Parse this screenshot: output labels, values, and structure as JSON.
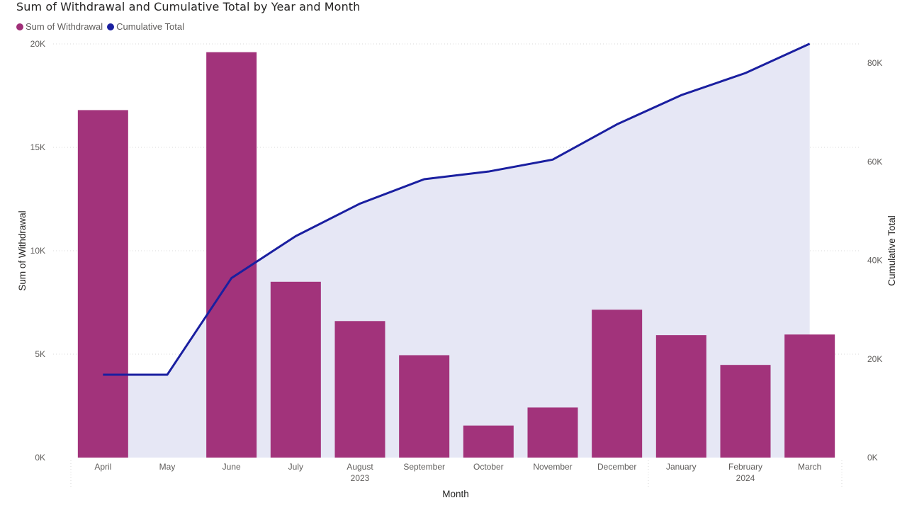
{
  "title": "Sum of Withdrawal and Cumulative Total by Year and Month",
  "legend": [
    {
      "label": "Sum of Withdrawal",
      "color": "#A02F78"
    },
    {
      "label": "Cumulative Total",
      "color": "#1A1FA0"
    }
  ],
  "chart_data": {
    "type": "bar+line",
    "x_axis_title": "Month",
    "y_left_title": "Sum of Withdrawal",
    "y_right_title": "Cumulative Total",
    "left_ticks": [
      "0K",
      "5K",
      "10K",
      "15K",
      "20K"
    ],
    "right_ticks": [
      "0K",
      "20K",
      "40K",
      "60K",
      "80K"
    ],
    "ylim_left": [
      0,
      20000
    ],
    "ylim_right": [
      0,
      80000
    ],
    "grid": true,
    "legend_position": "top-left",
    "categories": [
      "April",
      "May",
      "June",
      "July",
      "August",
      "September",
      "October",
      "November",
      "December",
      "January",
      "February",
      "March"
    ],
    "year_labels": [
      {
        "label": "2023",
        "under": "August"
      },
      {
        "label": "2024",
        "under": "February"
      }
    ],
    "series": [
      {
        "name": "Sum of Withdrawal",
        "type": "bar",
        "axis": "left",
        "values": [
          16800,
          0,
          19600,
          8500,
          6600,
          4950,
          1550,
          2420,
          7150,
          5920,
          4480,
          5950
        ]
      },
      {
        "name": "Cumulative Total",
        "type": "line-area",
        "axis": "right",
        "values": [
          16800,
          16800,
          36400,
          44900,
          51500,
          56450,
          58000,
          60420,
          67570,
          73490,
          77970,
          83920
        ]
      }
    ],
    "colors": {
      "bar": "#A02F78",
      "bar_overlap": "#96307F",
      "line": "#1A1FA0",
      "area": "#E6E7F5",
      "grid": "#D8D8D8"
    }
  }
}
